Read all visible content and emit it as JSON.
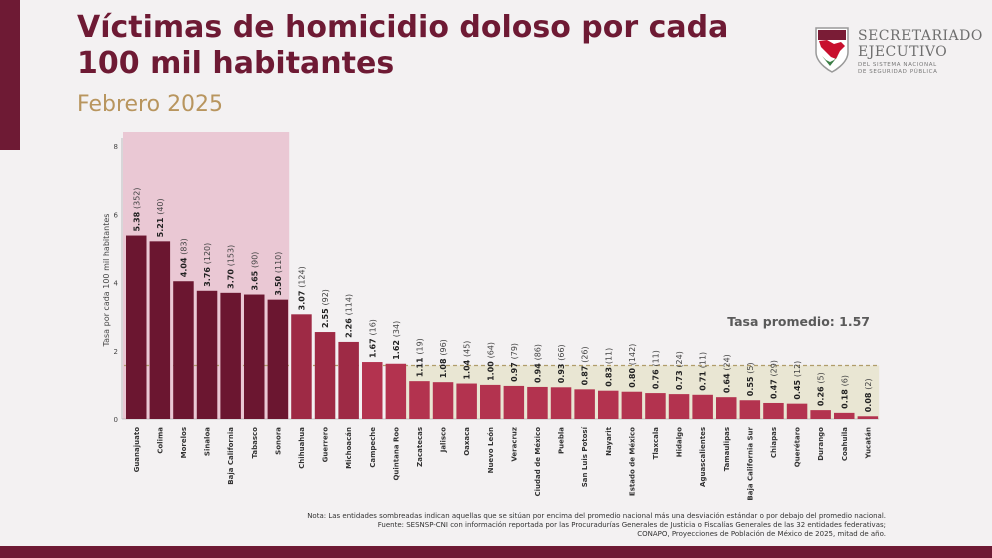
{
  "header": {
    "title": "Víctimas de homicidio doloso por cada 100 mil habitantes",
    "subtitle": "Febrero 2025"
  },
  "logo": {
    "line1": "SECRETARIADO",
    "line2": "EJECUTIVO",
    "line3": "DEL SISTEMA NACIONAL",
    "line4": "DE SEGURIDAD PÚBLICA",
    "icon": "shield-mexico-map-icon"
  },
  "colors": {
    "brand": "#6e1a34",
    "accent_gold": "#b8955e",
    "bar_dark": "#6b1630",
    "bar_medium": "#9e2a45",
    "bar_light": "#b3334f",
    "highlight_top": "#e8c1cf",
    "highlight_band": "#e9e6d3"
  },
  "note": {
    "line1": "Nota: Las entidades sombreadas indican aquellas que se sitúan por encima del promedio nacional más una desviación estándar o por debajo del promedio nacional.",
    "line2": "Fuente: SESNSP-CNI con información reportada por las Procuradurías Generales de Justicia o Fiscalías Generales de las 32 entidades federativas;",
    "line3": "CONAPO, Proyecciones de Población de México de 2025, mitad de año."
  },
  "chart_data": {
    "type": "bar",
    "ylabel": "Tasa por cada 100 mil habitantes",
    "ylim": [
      0,
      8
    ],
    "yticks": [
      "0",
      "2",
      "4",
      "6",
      "8"
    ],
    "average_label": "Tasa promedio: 1.57",
    "average": 1.57,
    "categories": [
      "Guanajuato",
      "Colima",
      "Morelos",
      "Sinaloa",
      "Baja California",
      "Tabasco",
      "Sonora",
      "Chihuahua",
      "Guerrero",
      "Michoacán",
      "Campeche",
      "Quintana Roo",
      "Zacatecas",
      "Jalisco",
      "Oaxaca",
      "Nuevo León",
      "Veracruz",
      "Ciudad de México",
      "Puebla",
      "San Luis Potosí",
      "Nayarit",
      "Estado de México",
      "Tlaxcala",
      "Hidalgo",
      "Aguascalientes",
      "Tamaulipas",
      "Baja California Sur",
      "Chiapas",
      "Querétaro",
      "Durango",
      "Coahuila",
      "Yucatán"
    ],
    "values": [
      5.38,
      5.21,
      4.04,
      3.76,
      3.7,
      3.65,
      3.5,
      3.07,
      2.55,
      2.26,
      1.67,
      1.62,
      1.11,
      1.08,
      1.04,
      1.0,
      0.97,
      0.94,
      0.93,
      0.87,
      0.83,
      0.8,
      0.76,
      0.73,
      0.71,
      0.64,
      0.55,
      0.47,
      0.45,
      0.26,
      0.18,
      0.08
    ],
    "value_labels": [
      "5.38",
      "5.21",
      "4.04",
      "3.76",
      "3.70",
      "3.65",
      "3.50",
      "3.07",
      "2.55",
      "2.26",
      "1.67",
      "1.62",
      "1.11",
      "1.08",
      "1.04",
      "1.00",
      "0.97",
      "0.94",
      "0.93",
      "0.87",
      "0.83",
      "0.80",
      "0.76",
      "0.73",
      "0.71",
      "0.64",
      "0.55",
      "0.47",
      "0.45",
      "0.26",
      "0.18",
      "0.08"
    ],
    "counts": [
      "(352)",
      "(40)",
      "(83)",
      "(120)",
      "(153)",
      "(90)",
      "(110)",
      "(124)",
      "(92)",
      "(114)",
      "(16)",
      "(34)",
      "(19)",
      "(96)",
      "(45)",
      "(64)",
      "(79)",
      "(86)",
      "(66)",
      "(26)",
      "(11)",
      "(142)",
      "(11)",
      "(24)",
      "(11)",
      "(24)",
      "(5)",
      "(29)",
      "(12)",
      "(5)",
      "(6)",
      "(2)"
    ],
    "grid": false,
    "highlight_above_count": 7,
    "highlight_below_start": 12
  }
}
